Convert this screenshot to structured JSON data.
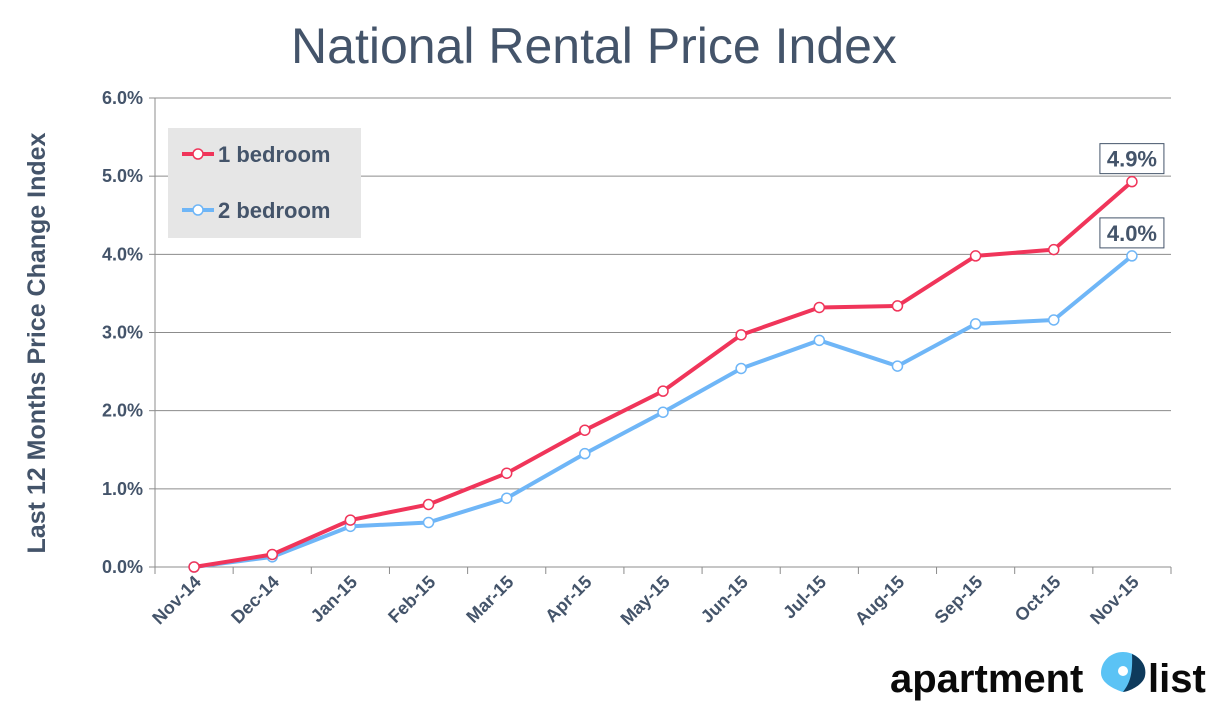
{
  "chart_data": {
    "type": "line",
    "title": "National Rental Price Index",
    "ylabel": "Last 12 Months Price Change Index",
    "xlabel": "",
    "x": [
      "Nov-14",
      "Dec-14",
      "Jan-15",
      "Feb-15",
      "Mar-15",
      "Apr-15",
      "May-15",
      "Jun-15",
      "Jul-15",
      "Aug-15",
      "Sep-15",
      "Oct-15",
      "Nov-15"
    ],
    "ylim": [
      0,
      6
    ],
    "yticks": [
      0,
      1,
      2,
      3,
      4,
      5,
      6
    ],
    "ytick_labels": [
      "0.0%",
      "1.0%",
      "2.0%",
      "3.0%",
      "4.0%",
      "5.0%",
      "6.0%"
    ],
    "grid": "horizontal",
    "legend_position": "top-left",
    "series": [
      {
        "name": "1 bedroom",
        "color": "#f0355a",
        "values": [
          0.0,
          0.16,
          0.6,
          0.8,
          1.2,
          1.75,
          2.25,
          2.97,
          3.32,
          3.34,
          3.98,
          4.06,
          4.93
        ]
      },
      {
        "name": "2 bedroom",
        "color": "#6fb6f7",
        "values": [
          0.0,
          0.13,
          0.52,
          0.57,
          0.88,
          1.45,
          1.98,
          2.54,
          2.9,
          2.57,
          3.11,
          3.16,
          3.98
        ]
      }
    ],
    "annotations": [
      {
        "series": 0,
        "index": 12,
        "text": "4.9%"
      },
      {
        "series": 1,
        "index": 12,
        "text": "4.0%"
      }
    ]
  },
  "logo": {
    "text_left": "apartment",
    "text_right": "list",
    "pin_color": "#5bc3f5",
    "pin_dark_color": "#0e3a5c"
  }
}
